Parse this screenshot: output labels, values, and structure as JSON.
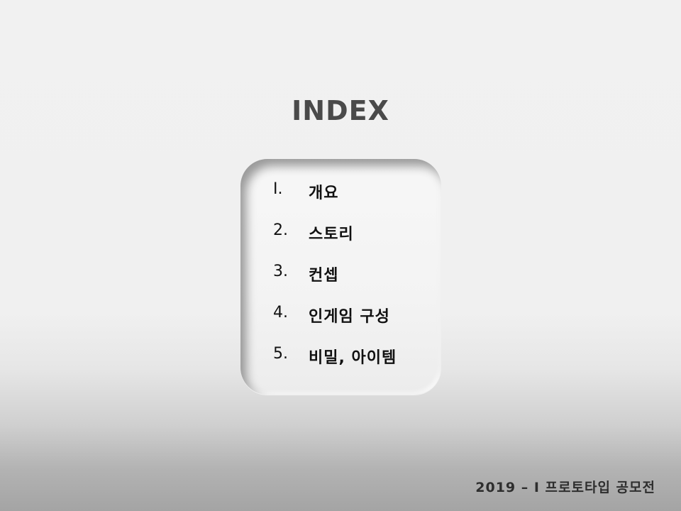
{
  "slide": {
    "title": "INDEX",
    "index_items": [
      {
        "number": "I.",
        "label": "개요"
      },
      {
        "number": "2.",
        "label": "스토리"
      },
      {
        "number": "3.",
        "label": "컨셉"
      },
      {
        "number": "4.",
        "label": "인게임 구성"
      },
      {
        "number": "5.",
        "label": "비밀, 아이템"
      }
    ],
    "footer": "2019 – I 프로토타입 공모전"
  },
  "colors": {
    "title": "#4a4a4a",
    "text": "#111111",
    "footer": "#2e2e2e",
    "panel": "#f3f3f3"
  }
}
